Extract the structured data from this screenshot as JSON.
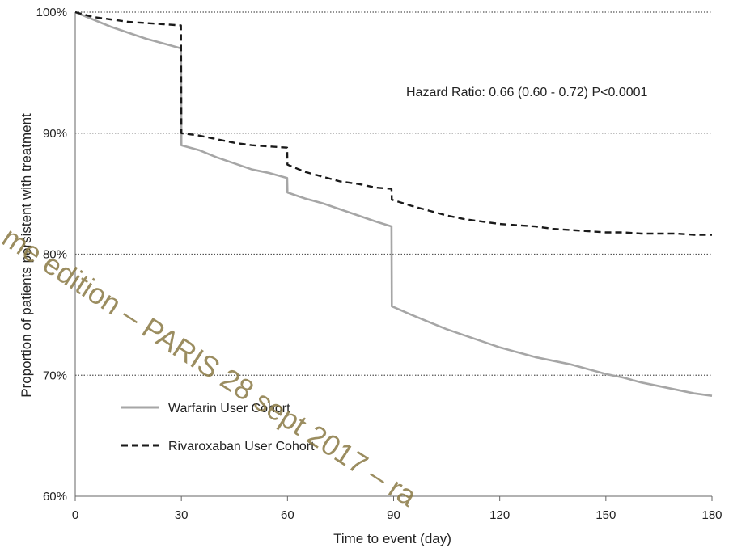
{
  "chart_data": {
    "type": "line",
    "xlabel": "Time to event (day)",
    "ylabel": "Proportion of patients persistent with treatment",
    "xlim": [
      0,
      180
    ],
    "ylim": [
      60,
      100
    ],
    "x_ticks": [
      "0",
      "30",
      "60",
      "90",
      "120",
      "150",
      "180"
    ],
    "y_ticks": [
      "60%",
      "70%",
      "80%",
      "90%",
      "100%"
    ],
    "grid": "horizontal dotted",
    "legend_position": "bottom-left",
    "annotation": "Hazard Ratio: 0.66 (0.60 - 0.72) P<0.0001",
    "series": [
      {
        "name": "Warfarin User Cohort",
        "color": "#a6a6a6",
        "style": "solid",
        "x": [
          0,
          5,
          10,
          15,
          20,
          25,
          29.9,
          30,
          35,
          40,
          45,
          50,
          55,
          59.9,
          60,
          65,
          70,
          75,
          80,
          85,
          89.4,
          89.5,
          95,
          100,
          105,
          110,
          115,
          120,
          125,
          130,
          135,
          140,
          145,
          150,
          155,
          160,
          165,
          170,
          175,
          180
        ],
        "y": [
          100,
          99.4,
          98.8,
          98.3,
          97.8,
          97.4,
          97.0,
          89.0,
          88.6,
          88.0,
          87.5,
          87.0,
          86.7,
          86.3,
          85.1,
          84.6,
          84.2,
          83.7,
          83.2,
          82.7,
          82.3,
          75.7,
          75.0,
          74.4,
          73.8,
          73.3,
          72.8,
          72.3,
          71.9,
          71.5,
          71.2,
          70.9,
          70.5,
          70.1,
          69.8,
          69.4,
          69.1,
          68.8,
          68.5,
          68.3
        ]
      },
      {
        "name": "Rivaroxaban User Cohort",
        "color": "#1a1a1a",
        "style": "dashed",
        "x": [
          0,
          5,
          10,
          15,
          20,
          25,
          29.9,
          30,
          35,
          40,
          45,
          50,
          55,
          59.9,
          60,
          65,
          70,
          75,
          80,
          85,
          89.4,
          89.5,
          95,
          100,
          105,
          110,
          115,
          120,
          125,
          130,
          135,
          140,
          145,
          150,
          155,
          160,
          165,
          170,
          175,
          180
        ],
        "y": [
          100,
          99.6,
          99.4,
          99.2,
          99.1,
          99.0,
          98.9,
          90.0,
          89.8,
          89.5,
          89.2,
          89.0,
          88.9,
          88.8,
          87.4,
          86.8,
          86.4,
          86.0,
          85.8,
          85.5,
          85.4,
          84.5,
          84.0,
          83.6,
          83.2,
          82.9,
          82.7,
          82.5,
          82.4,
          82.3,
          82.1,
          82.0,
          81.9,
          81.8,
          81.8,
          81.7,
          81.7,
          81.7,
          81.6,
          81.6
        ]
      }
    ]
  },
  "watermark": {
    "text": "me edition – PARIS 28 sept 2017 – ra",
    "color": "#8a7a45"
  }
}
